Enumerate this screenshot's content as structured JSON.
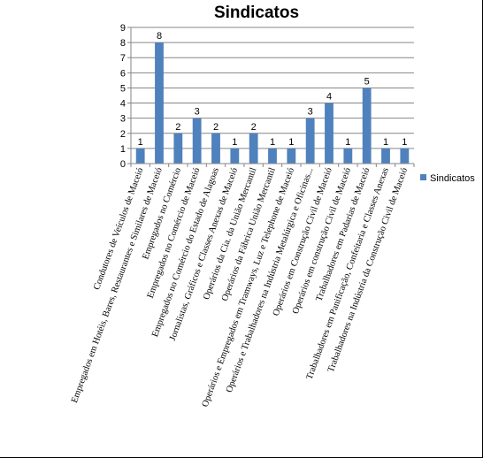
{
  "chart_data": {
    "type": "bar",
    "title": "Sindicatos",
    "xlabel": "",
    "ylabel": "",
    "ylim": [
      0,
      9
    ],
    "yticks": [
      0,
      1,
      2,
      3,
      4,
      5,
      6,
      7,
      8,
      9
    ],
    "grid": true,
    "legend_position": "right",
    "series": [
      {
        "name": "Sindicatos",
        "color": "#4f81bd",
        "values": [
          1,
          8,
          2,
          3,
          2,
          1,
          2,
          1,
          1,
          3,
          4,
          1,
          5,
          1,
          1
        ]
      }
    ],
    "categories": [
      "Condutores de Veículos de Maceió",
      "Empregados em Hotéis, Bares, Restaurantes e Similares de Maceió",
      "Empregados no Comércio",
      "Empregados no Comércio de Maceió",
      "Empregados no Comércio do Estado de Alagoas",
      "Jornalistas, Gráficos e Classes Anexas de Maceió",
      "Operários da Cia. da União Mercantil",
      "Operários da Fábrica União Mercantil",
      "Operários e Empregados em Tramways, Luz e Telephone de Maceió",
      "Operários e Trabalhadores na Indústria Metalúrgica e Oficinas...",
      "Operários em Construção Civil de Maceió",
      "Operários em construção Civil de Maceió",
      "Trabalhadores em Padarias de Maceió",
      "Trabalhadores em Panificação, Confeitaria e Classes Anexas",
      "Trabalhadores na Indústria da Construção Civil de Maceió"
    ],
    "display_categories": [
      "Condutores de Veículos de Maceió",
      "Empregados em Hotéis, Bares, Restaurantes e Similares de Maceió",
      "Empregados no Comércio",
      "Empregados no Comércio de Maceió",
      "Empregados no Comércio do Estado de Alagoas",
      "Jornalistas, Gráficos e Classes Anexas de Maceió",
      "Operários da Cia. da União Mercantil",
      "Operários da Fábrica União Mercantil",
      "Operários e Empregados em Tramways, Luz e Telephone de Maceió",
      "Operários e Trabalhadores na Indústria Metalúrgica e Oficinas...",
      "Operários em Construção Civil de Maceió",
      "Operários em construção Civil de Maceió",
      "Trabalhadores em Padarias de Maceió",
      "Trabalhadores em Panificação, Confeitaria e Classes Anexas",
      "Trabalhadores na Indústria da Construção Civil de Maceió"
    ]
  }
}
